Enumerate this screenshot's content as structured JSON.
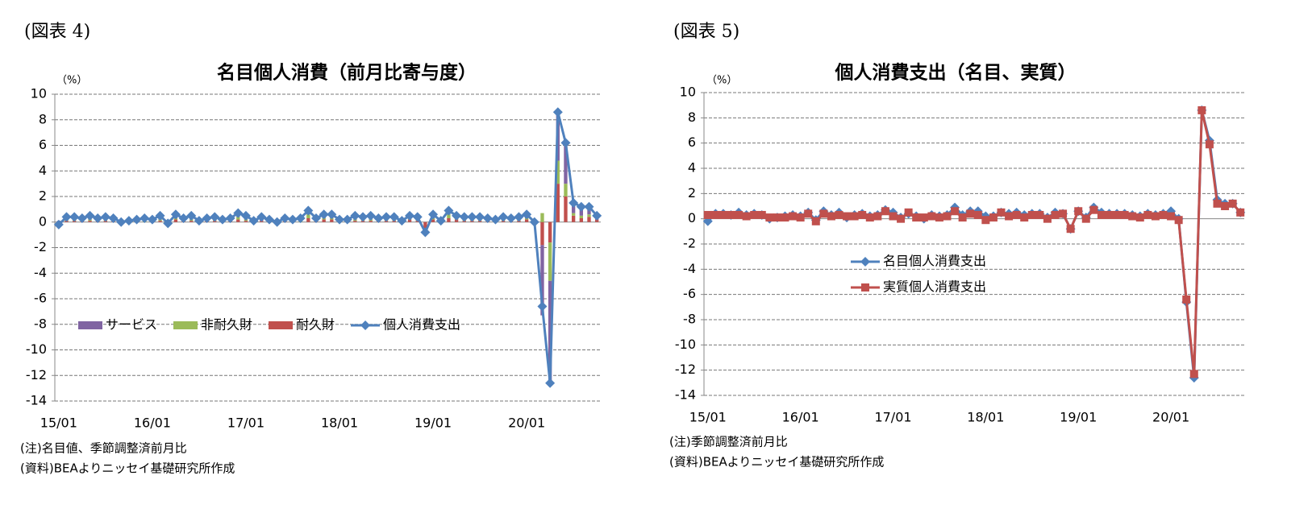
{
  "chart_data": [
    {
      "type": "bar",
      "figure_label": "(図表 4)",
      "title": "名目個人消費（前月比寄与度）",
      "y_unit": "（%）",
      "note": "(注)名目値、季節調整済前月比",
      "source": "(資料)BEAよりニッセイ基礎研究所作成",
      "stacked": true,
      "grid": true,
      "legend": "lower-left",
      "categories": [
        "15/01",
        null,
        null,
        null,
        null,
        null,
        null,
        null,
        null,
        null,
        null,
        null,
        "16/01",
        null,
        null,
        null,
        null,
        null,
        null,
        null,
        null,
        null,
        null,
        null,
        "17/01",
        null,
        null,
        null,
        null,
        null,
        null,
        null,
        null,
        null,
        null,
        null,
        "18/01",
        null,
        null,
        null,
        null,
        null,
        null,
        null,
        null,
        null,
        null,
        null,
        "19/01",
        null,
        null,
        null,
        null,
        null,
        null,
        null,
        null,
        null,
        null,
        null,
        "20/01",
        null,
        null,
        null,
        null,
        null,
        null,
        null,
        null,
        null
      ],
      "ylim": [
        -14,
        10
      ],
      "yticks": [
        -14,
        -12,
        -10,
        -8,
        -6,
        -4,
        -2,
        0,
        2,
        4,
        6,
        8,
        10
      ],
      "series": [
        {
          "name": "サービス",
          "color": "#8064A2",
          "values": [
            0.1,
            0.2,
            0.2,
            0.2,
            0.3,
            0.2,
            0.2,
            0.2,
            0.1,
            0.1,
            0.1,
            0.2,
            0.1,
            0.3,
            0.1,
            0.3,
            0.2,
            0.3,
            0.1,
            0.2,
            0.2,
            0.1,
            0.2,
            0.3,
            0.3,
            0.1,
            0.3,
            0.1,
            0.1,
            0.2,
            0.1,
            0.2,
            0.3,
            0.2,
            0.3,
            0.3,
            0.2,
            0.1,
            0.3,
            0.2,
            0.3,
            0.2,
            0.2,
            0.2,
            0.1,
            0.2,
            0.2,
            0.0,
            0.3,
            0.1,
            0.3,
            0.2,
            0.2,
            0.2,
            0.2,
            0.2,
            0.1,
            0.2,
            0.2,
            0.2,
            0.3,
            0.1,
            -5.5,
            -8.0,
            3.8,
            3.2,
            0.8,
            0.7,
            0.6,
            0.3
          ]
        },
        {
          "name": "非耐久財",
          "color": "#9BBB59",
          "values": [
            -0.2,
            0.1,
            0.1,
            0.0,
            0.1,
            0.0,
            0.1,
            0.0,
            -0.1,
            0.0,
            0.0,
            0.1,
            0.0,
            0.1,
            -0.1,
            0.1,
            0.0,
            0.1,
            0.0,
            0.0,
            0.1,
            0.1,
            0.0,
            0.2,
            0.1,
            0.0,
            0.0,
            0.0,
            -0.1,
            0.0,
            0.0,
            0.1,
            0.3,
            0.0,
            0.1,
            0.1,
            0.0,
            0.1,
            0.1,
            0.1,
            0.1,
            0.0,
            0.1,
            0.1,
            0.0,
            0.1,
            0.1,
            -0.3,
            0.1,
            0.0,
            0.3,
            0.1,
            0.1,
            0.1,
            0.1,
            0.0,
            0.0,
            0.1,
            0.0,
            0.1,
            0.1,
            -0.1,
            0.7,
            -3.0,
            1.8,
            1.0,
            0.2,
            0.2,
            0.2,
            0.0
          ]
        },
        {
          "name": "耐久財",
          "color": "#C0504D",
          "values": [
            -0.1,
            0.1,
            0.1,
            0.1,
            0.1,
            0.1,
            0.1,
            0.1,
            0.0,
            0.0,
            0.1,
            0.0,
            0.1,
            0.1,
            -0.1,
            0.2,
            0.1,
            0.1,
            0.0,
            0.1,
            0.1,
            0.0,
            0.1,
            0.2,
            0.1,
            0.0,
            0.1,
            0.1,
            0.0,
            0.1,
            0.1,
            0.0,
            0.3,
            0.1,
            0.2,
            0.2,
            0.0,
            0.0,
            0.1,
            0.1,
            0.1,
            0.1,
            0.1,
            0.1,
            0.0,
            0.2,
            0.1,
            -0.5,
            0.2,
            0.0,
            0.3,
            0.2,
            0.1,
            0.1,
            0.1,
            0.1,
            0.1,
            0.1,
            0.1,
            0.1,
            0.2,
            0.0,
            -1.8,
            -1.6,
            3.0,
            2.0,
            0.5,
            0.3,
            0.4,
            0.2
          ]
        },
        {
          "name": "個人消費支出",
          "type": "line",
          "marker": "diamond",
          "color": "#4F81BD",
          "values": [
            -0.2,
            0.4,
            0.4,
            0.3,
            0.5,
            0.3,
            0.4,
            0.3,
            0.0,
            0.1,
            0.2,
            0.3,
            0.2,
            0.5,
            -0.1,
            0.6,
            0.3,
            0.5,
            0.1,
            0.3,
            0.4,
            0.2,
            0.3,
            0.7,
            0.5,
            0.1,
            0.4,
            0.2,
            0.0,
            0.3,
            0.2,
            0.3,
            0.9,
            0.3,
            0.6,
            0.6,
            0.2,
            0.2,
            0.5,
            0.4,
            0.5,
            0.3,
            0.4,
            0.4,
            0.1,
            0.5,
            0.4,
            -0.8,
            0.6,
            0.1,
            0.9,
            0.5,
            0.4,
            0.4,
            0.4,
            0.3,
            0.2,
            0.4,
            0.3,
            0.4,
            0.6,
            0.0,
            -6.6,
            -12.6,
            8.6,
            6.2,
            1.5,
            1.2,
            1.2,
            0.5
          ]
        }
      ]
    },
    {
      "type": "line",
      "figure_label": "(図表 5)",
      "title": "個人消費支出（名目、実質）",
      "y_unit": "（%）",
      "note": "(注)季節調整済前月比",
      "source": "(資料)BEAよりニッセイ基礎研究所作成",
      "grid": true,
      "legend": "center-left",
      "categories": [
        "15/01",
        null,
        null,
        null,
        null,
        null,
        null,
        null,
        null,
        null,
        null,
        null,
        "16/01",
        null,
        null,
        null,
        null,
        null,
        null,
        null,
        null,
        null,
        null,
        null,
        "17/01",
        null,
        null,
        null,
        null,
        null,
        null,
        null,
        null,
        null,
        null,
        null,
        "18/01",
        null,
        null,
        null,
        null,
        null,
        null,
        null,
        null,
        null,
        null,
        null,
        "19/01",
        null,
        null,
        null,
        null,
        null,
        null,
        null,
        null,
        null,
        null,
        null,
        "20/01",
        null,
        null,
        null,
        null,
        null,
        null,
        null,
        null,
        null
      ],
      "ylim": [
        -14,
        10
      ],
      "yticks": [
        -14,
        -12,
        -10,
        -8,
        -6,
        -4,
        -2,
        0,
        2,
        4,
        6,
        8,
        10
      ],
      "series": [
        {
          "name": "名目個人消費支出",
          "marker": "diamond",
          "color": "#4F81BD",
          "values": [
            -0.2,
            0.4,
            0.4,
            0.3,
            0.5,
            0.3,
            0.4,
            0.3,
            0.0,
            0.1,
            0.2,
            0.3,
            0.2,
            0.5,
            -0.1,
            0.6,
            0.3,
            0.5,
            0.1,
            0.3,
            0.4,
            0.2,
            0.3,
            0.7,
            0.5,
            0.1,
            0.4,
            0.2,
            0.0,
            0.3,
            0.2,
            0.3,
            0.9,
            0.3,
            0.6,
            0.6,
            0.2,
            0.2,
            0.5,
            0.4,
            0.5,
            0.3,
            0.4,
            0.4,
            0.1,
            0.5,
            0.4,
            -0.8,
            0.6,
            0.1,
            0.9,
            0.5,
            0.4,
            0.4,
            0.4,
            0.3,
            0.2,
            0.4,
            0.3,
            0.4,
            0.6,
            0.0,
            -6.6,
            -12.6,
            8.6,
            6.2,
            1.5,
            1.2,
            1.2,
            0.5
          ]
        },
        {
          "name": "実質個人消費支出",
          "marker": "square",
          "color": "#C0504D",
          "values": [
            0.3,
            0.3,
            0.3,
            0.3,
            0.3,
            0.2,
            0.3,
            0.3,
            0.1,
            0.1,
            0.1,
            0.2,
            0.1,
            0.4,
            -0.2,
            0.4,
            0.2,
            0.3,
            0.2,
            0.2,
            0.3,
            0.1,
            0.2,
            0.6,
            0.2,
            0.0,
            0.5,
            0.1,
            0.1,
            0.2,
            0.1,
            0.2,
            0.6,
            0.1,
            0.4,
            0.3,
            -0.1,
            0.1,
            0.5,
            0.2,
            0.3,
            0.1,
            0.3,
            0.3,
            0.0,
            0.3,
            0.4,
            -0.8,
            0.6,
            0.0,
            0.7,
            0.3,
            0.3,
            0.3,
            0.3,
            0.2,
            0.1,
            0.3,
            0.2,
            0.3,
            0.2,
            -0.1,
            -6.4,
            -12.3,
            8.6,
            5.9,
            1.2,
            1.0,
            1.2,
            0.5
          ]
        }
      ]
    }
  ]
}
